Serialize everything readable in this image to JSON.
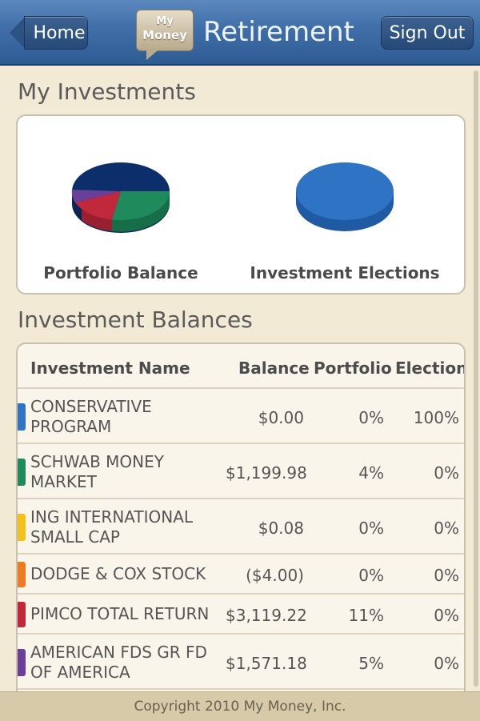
{
  "header": {
    "home_label": "Home",
    "logo_line1": "My",
    "logo_line2": "Money",
    "title": "Retirement",
    "signout_label": "Sign Out"
  },
  "investments": {
    "title": "My Investments",
    "portfolio_chart": {
      "label": "Portfolio Balance",
      "slices": [
        {
          "name": "SCHWAB MONEY MARKET",
          "color": "#1f8a5c"
        },
        {
          "name": "PIMCO TOTAL RETURN",
          "color": "#c0283c"
        },
        {
          "name": "AMERICAN FDS GR FD OF AMERICA",
          "color": "#6a3f9a"
        },
        {
          "name": "OTHER",
          "color": "#0c2f6b"
        }
      ]
    },
    "elections_chart": {
      "label": "Investment Elections",
      "slices": [
        {
          "name": "CONSERVATIVE PROGRAM",
          "color": "#2f73c4"
        }
      ]
    }
  },
  "balances": {
    "title": "Investment Balances",
    "columns": [
      "Investment Name",
      "Balance",
      "Portfolio",
      "Election"
    ],
    "rows": [
      {
        "name": "CONSERVATIVE PROGRAM",
        "line1": "CONSERVATIVE",
        "line2": "PROGRAM",
        "balance": "$0.00",
        "portfolio": "0%",
        "election": "100%",
        "color": "#2f73c4"
      },
      {
        "name": "SCHWAB MONEY MARKET",
        "line1": "SCHWAB MONEY",
        "line2": "MARKET",
        "balance": "$1,199.98",
        "portfolio": "4%",
        "election": "0%",
        "color": "#1f8a5c"
      },
      {
        "name": "ING INTERNATIONAL SMALL CAP",
        "line1": "ING INTERNATIONAL",
        "line2": "SMALL CAP",
        "balance": "$0.08",
        "portfolio": "0%",
        "election": "0%",
        "color": "#f2c21b"
      },
      {
        "name": "DODGE & COX STOCK",
        "line1": "DODGE & COX STOCK",
        "line2": "",
        "balance": "($4.00)",
        "portfolio": "0%",
        "election": "0%",
        "color": "#ee7a22"
      },
      {
        "name": "PIMCO TOTAL RETURN",
        "line1": "PIMCO TOTAL RETURN",
        "line2": "",
        "balance": "$3,119.22",
        "portfolio": "11%",
        "election": "0%",
        "color": "#c0283c"
      },
      {
        "name": "AMERICAN FDS GR FD OF AMERICA",
        "line1": "AMERICAN FDS GR FD",
        "line2": "OF AMERICA",
        "balance": "$1,571.18",
        "portfolio": "5%",
        "election": "0%",
        "color": "#6a3f9a"
      }
    ]
  },
  "footer": {
    "copyright": "Copyright 2010 My Money, Inc."
  }
}
